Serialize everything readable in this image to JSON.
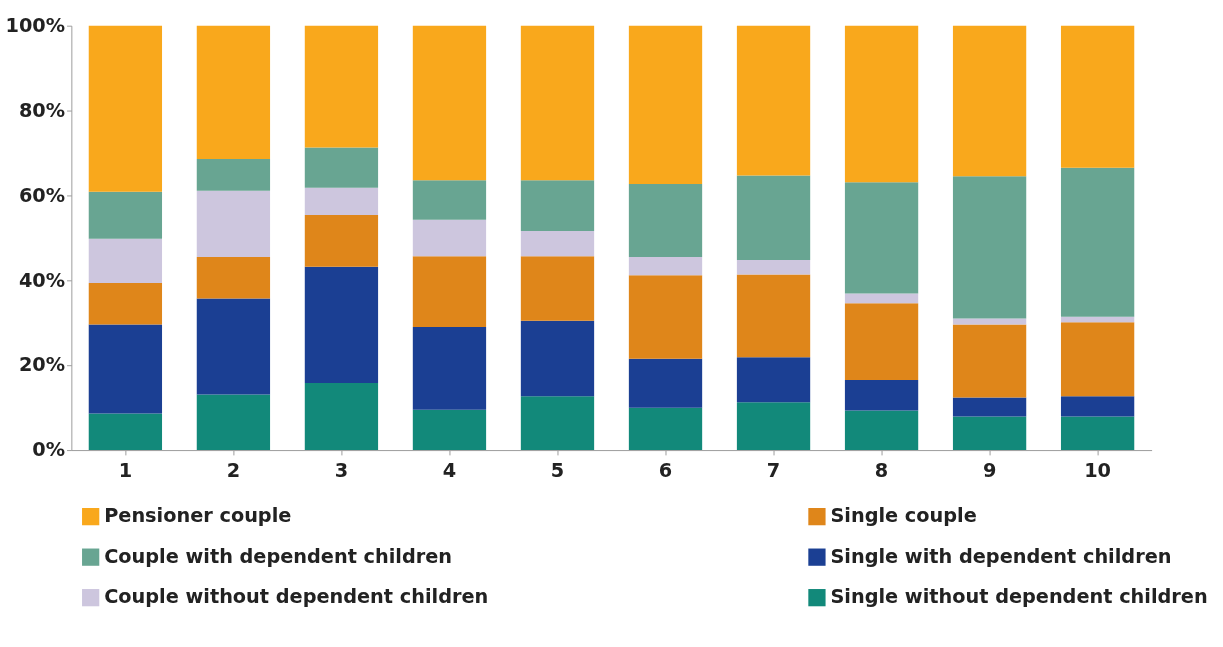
{
  "chart_data": {
    "type": "bar",
    "stacked": true,
    "categories": [
      "1",
      "2",
      "3",
      "4",
      "5",
      "6",
      "7",
      "8",
      "9",
      "10"
    ],
    "ylim": [
      0,
      100
    ],
    "yticks": [
      {
        "value": 0,
        "label": "0%"
      },
      {
        "value": 20,
        "label": "20%"
      },
      {
        "value": 40,
        "label": "40%"
      },
      {
        "value": 60,
        "label": "60%"
      },
      {
        "value": 80,
        "label": "80%"
      },
      {
        "value": 100,
        "label": "100%"
      }
    ],
    "grid": false,
    "legend": "bottom",
    "series": [
      {
        "name": "Single without dependent children",
        "color": "#12897a",
        "values": [
          8.6,
          13.1,
          15.8,
          9.5,
          12.7,
          10.0,
          11.3,
          9.3,
          7.9,
          7.9
        ]
      },
      {
        "name": "Single with dependent children",
        "color": "#1b3f93",
        "values": [
          21.0,
          22.6,
          27.4,
          19.5,
          17.8,
          11.5,
          10.6,
          7.2,
          4.5,
          4.8
        ]
      },
      {
        "name": "Single couple",
        "color": "#df861a",
        "values": [
          9.8,
          9.8,
          12.2,
          16.7,
          15.2,
          19.7,
          19.5,
          18.1,
          17.2,
          17.4
        ]
      },
      {
        "name": "Couple without dependent children",
        "color": "#cdc6de",
        "values": [
          10.4,
          15.6,
          6.4,
          8.6,
          5.9,
          4.3,
          3.4,
          2.3,
          1.4,
          1.3
        ]
      },
      {
        "name": "Couple with dependent children",
        "color": "#68a592",
        "values": [
          11.1,
          7.5,
          9.5,
          9.3,
          12.0,
          17.2,
          19.9,
          26.2,
          33.5,
          35.1
        ]
      },
      {
        "name": "Pensioner couple",
        "color": "#f9a81c",
        "values": [
          39.1,
          31.4,
          28.7,
          36.4,
          36.4,
          37.3,
          35.3,
          36.9,
          35.5,
          33.5
        ]
      }
    ]
  }
}
